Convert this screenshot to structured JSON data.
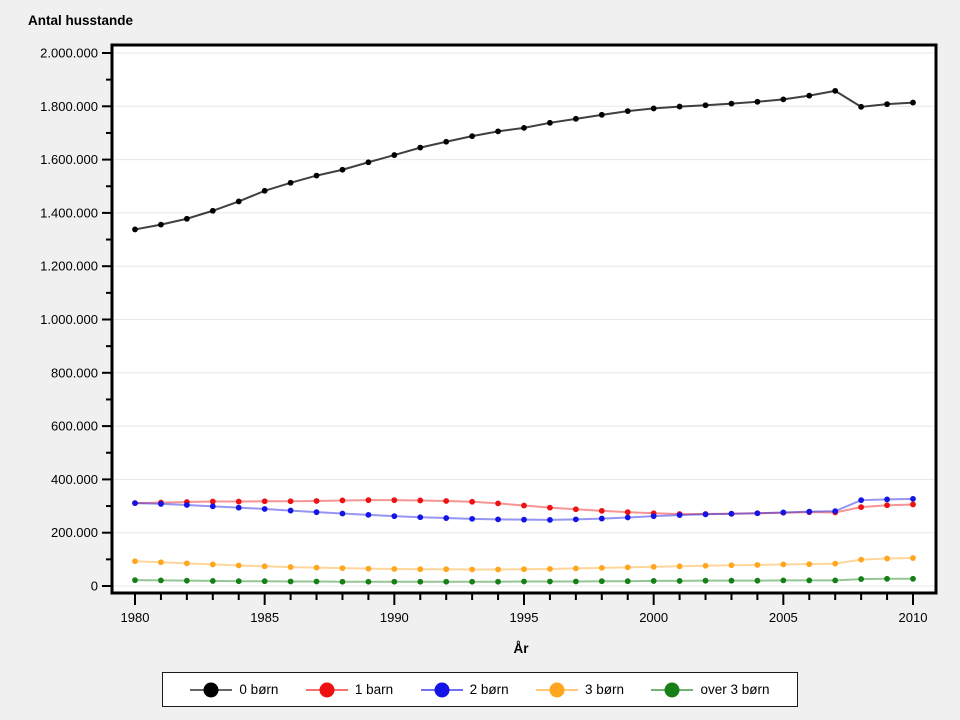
{
  "page": {
    "background": "#f0f0f0",
    "plot_background": "#ffffff",
    "grid_color": "#e7e7e7",
    "frame_color": "#000000"
  },
  "chart_data": {
    "type": "line",
    "title": "Antal husstande",
    "xlabel": "År",
    "ylabel": "",
    "legend_position": "bottom",
    "grid": "horizontal",
    "x": [
      1980,
      1981,
      1982,
      1983,
      1984,
      1985,
      1986,
      1987,
      1988,
      1989,
      1990,
      1991,
      1992,
      1993,
      1994,
      1995,
      1996,
      1997,
      1998,
      1999,
      2000,
      2001,
      2002,
      2003,
      2004,
      2005,
      2006,
      2007,
      2008,
      2009,
      2010
    ],
    "xlim": [
      1980,
      2010
    ],
    "xtick_label_years": [
      1980,
      1985,
      1990,
      1995,
      2000,
      2005,
      2010
    ],
    "ylim": [
      0,
      2000000
    ],
    "ytick_major_step": 200000,
    "ytick_minor_step": 100000,
    "series": [
      {
        "name": "0 børn",
        "color": "#000000",
        "values": [
          1338000,
          1356000,
          1378000,
          1408000,
          1443000,
          1483000,
          1513000,
          1540000,
          1562000,
          1590000,
          1617000,
          1645000,
          1667000,
          1688000,
          1706000,
          1719000,
          1738000,
          1753000,
          1768000,
          1782000,
          1792000,
          1799000,
          1804000,
          1810000,
          1817000,
          1826000,
          1840000,
          1858000,
          1798000,
          1808000,
          1814000
        ]
      },
      {
        "name": "1 barn",
        "color": "#ee1111",
        "values": [
          311000,
          313000,
          315000,
          317000,
          317000,
          318000,
          318000,
          319000,
          321000,
          322000,
          322000,
          321000,
          319000,
          316000,
          310000,
          302000,
          294000,
          288000,
          282000,
          277000,
          273000,
          270000,
          270000,
          271000,
          273000,
          275000,
          277000,
          276000,
          296000,
          303000,
          306000
        ]
      },
      {
        "name": "2 børn",
        "color": "#1414e6",
        "values": [
          311000,
          308000,
          304000,
          299000,
          294000,
          289000,
          283000,
          277000,
          272000,
          267000,
          262000,
          258000,
          255000,
          252000,
          250000,
          249000,
          248000,
          250000,
          253000,
          257000,
          262000,
          266000,
          269000,
          271000,
          273000,
          276000,
          279000,
          281000,
          322000,
          325000,
          327000
        ]
      },
      {
        "name": "3 børn",
        "color": "#ffa51e",
        "values": [
          93000,
          89000,
          85000,
          81000,
          77000,
          74000,
          71000,
          69000,
          67000,
          65000,
          64000,
          63000,
          63000,
          62000,
          62000,
          63000,
          64000,
          66000,
          68000,
          70000,
          72000,
          74000,
          76000,
          78000,
          79000,
          81000,
          82000,
          84000,
          99000,
          103000,
          105000
        ]
      },
      {
        "name": "over 3 børn",
        "color": "#168016",
        "values": [
          22000,
          21000,
          20000,
          19000,
          18000,
          18000,
          17000,
          17000,
          16000,
          16000,
          16000,
          16000,
          16000,
          16000,
          16000,
          17000,
          17000,
          17000,
          18000,
          18000,
          19000,
          19000,
          20000,
          20000,
          20000,
          21000,
          21000,
          21000,
          26000,
          27000,
          27000
        ]
      }
    ]
  }
}
